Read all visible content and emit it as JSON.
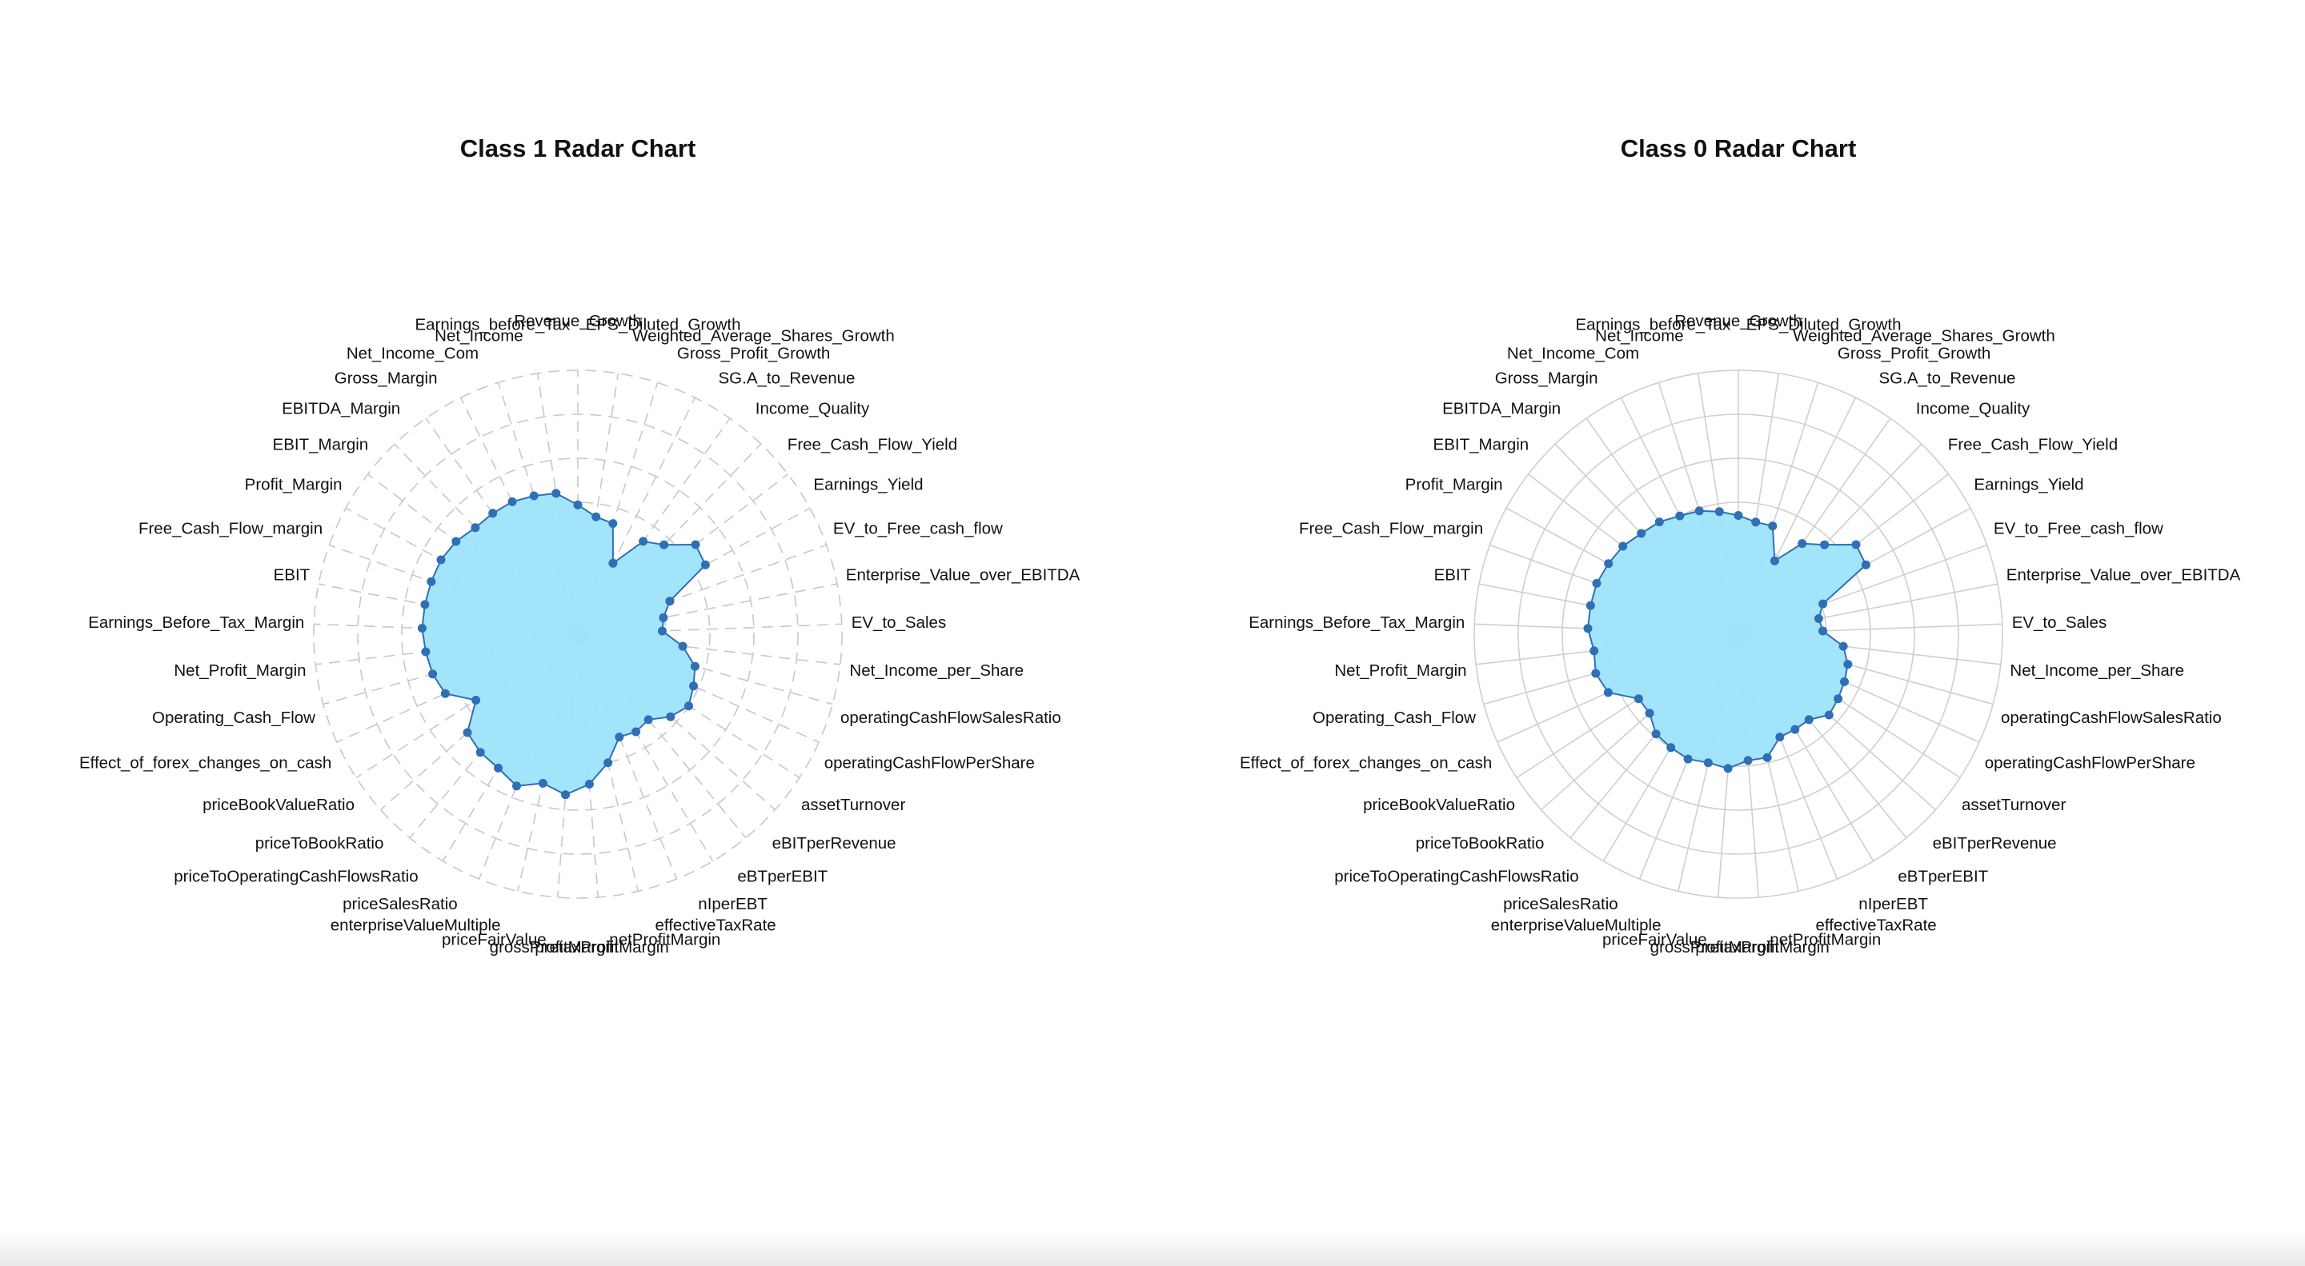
{
  "chart_data": [
    {
      "type": "radar",
      "title": "Class 1 Radar Chart",
      "grid": true,
      "grid_style": "dashed",
      "rlim": [
        0,
        1
      ],
      "rings": 6,
      "colors": {
        "fill": "#9de4fb",
        "line": "#2f6fb5",
        "marker": "#2f6fb5",
        "grid": "#c8c8c8"
      },
      "categories": [
        "Revenue_Growth",
        "EPS_Diluted_Growth",
        "Weighted_Average_Shares_Growth",
        "Gross_Profit_Growth",
        "SG.A_to_Revenue",
        "Income_Quality",
        "Free_Cash_Flow_Yield",
        "Earnings_Yield",
        "EV_to_Free_cash_flow",
        "Enterprise_Value_over_EBITDA",
        "EV_to_Sales",
        "Net_Income_per_Share",
        "operatingCashFlowSalesRatio",
        "operatingCashFlowPerShare",
        "assetTurnover",
        "eBITperRevenue",
        "eBTperEBIT",
        "nIperEBT",
        "effectiveTaxRate",
        "netProfitMargin",
        "pretaxProfitMargin",
        "grossProfitMargin",
        "priceFairValue",
        "enterpriseValueMultiple",
        "priceSalesRatio",
        "priceToOperatingCashFlowsRatio",
        "priceToBookRatio",
        "priceBookValueRatio",
        "Effect_of_forex_changes_on_cash",
        "Operating_Cash_Flow",
        "Net_Profit_Margin",
        "Earnings_Before_Tax_Margin",
        "EBIT",
        "Free_Cash_Flow_margin",
        "Profit_Margin",
        "EBIT_Margin",
        "EBITDA_Margin",
        "Gross_Margin",
        "Net_Income_Com",
        "Net_Income",
        "Earnings_before_Tax"
      ],
      "values": [
        0.49,
        0.45,
        0.44,
        0.3,
        0.43,
        0.47,
        0.56,
        0.55,
        0.37,
        0.33,
        0.32,
        0.4,
        0.46,
        0.48,
        0.5,
        0.47,
        0.42,
        0.43,
        0.42,
        0.5,
        0.57,
        0.61,
        0.58,
        0.62,
        0.59,
        0.58,
        0.56,
        0.46,
        0.55,
        0.57,
        0.58,
        0.59,
        0.59,
        0.59,
        0.59,
        0.58,
        0.56,
        0.56,
        0.56,
        0.55,
        0.54
      ]
    },
    {
      "type": "radar",
      "title": "Class 0 Radar Chart",
      "grid": true,
      "grid_style": "solid",
      "rlim": [
        0,
        1
      ],
      "rings": 6,
      "colors": {
        "fill": "#9de4fb",
        "line": "#2f6fb5",
        "marker": "#2f6fb5",
        "grid": "#cfcfcf"
      },
      "categories": [
        "Revenue_Growth",
        "EPS_Diluted_Growth",
        "Weighted_Average_Shares_Growth",
        "Gross_Profit_Growth",
        "SG.A_to_Revenue",
        "Income_Quality",
        "Free_Cash_Flow_Yield",
        "Earnings_Yield",
        "EV_to_Free_cash_flow",
        "Enterprise_Value_over_EBITDA",
        "EV_to_Sales",
        "Net_Income_per_Share",
        "operatingCashFlowSalesRatio",
        "operatingCashFlowPerShare",
        "assetTurnover",
        "eBITperRevenue",
        "eBTperEBIT",
        "nIperEBT",
        "effectiveTaxRate",
        "netProfitMargin",
        "pretaxProfitMargin",
        "grossProfitMargin",
        "priceFairValue",
        "enterpriseValueMultiple",
        "priceSalesRatio",
        "priceToOperatingCashFlowsRatio",
        "priceToBookRatio",
        "priceBookValueRatio",
        "Effect_of_forex_changes_on_cash",
        "Operating_Cash_Flow",
        "Net_Profit_Margin",
        "Earnings_Before_Tax_Margin",
        "EBIT",
        "Free_Cash_Flow_margin",
        "Profit_Margin",
        "EBIT_Margin",
        "EBITDA_Margin",
        "Gross_Margin",
        "Net_Income_Com",
        "Net_Income",
        "Earnings_before_Tax"
      ],
      "values": [
        0.45,
        0.43,
        0.43,
        0.31,
        0.42,
        0.47,
        0.56,
        0.55,
        0.34,
        0.31,
        0.32,
        0.4,
        0.43,
        0.44,
        0.45,
        0.46,
        0.42,
        0.42,
        0.42,
        0.48,
        0.48,
        0.51,
        0.5,
        0.51,
        0.5,
        0.49,
        0.45,
        0.45,
        0.54,
        0.56,
        0.55,
        0.57,
        0.57,
        0.57,
        0.56,
        0.55,
        0.53,
        0.52,
        0.5,
        0.49,
        0.47
      ]
    }
  ]
}
